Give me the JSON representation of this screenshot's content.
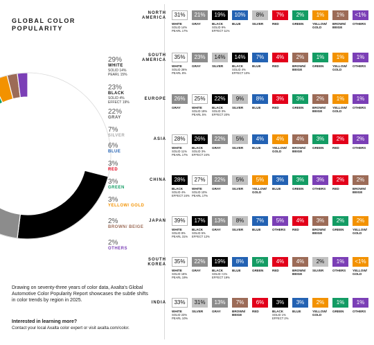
{
  "title_line1": "GLOBAL COLOR",
  "title_line2": "POPULARITY",
  "description": "Drawing on seventy-three years of color data, Axalta's Global Automotive Color Popularity Report showcases the subtle shifts in color trends by region in 2025.",
  "cta_heading": "Interested in learning more?",
  "cta_body": "Contact your local Axalta color expert or visit axalta.com/color.",
  "colors": {
    "white": "#ffffff",
    "gray": "#8c8c8c",
    "black": "#000000",
    "blue": "#2362b3",
    "silver": "#c2c2c2",
    "red": "#e2001a",
    "green": "#139c64",
    "yellow": "#f39200",
    "brown": "#9c6b57",
    "others": "#7b3fb6"
  },
  "legend": [
    {
      "pct": "29%",
      "name": "WHITE",
      "sub": [
        "SOLID 14%",
        "PEARL 15%"
      ],
      "key": "black_text"
    },
    {
      "pct": "23%",
      "name": "BLACK",
      "sub": [
        "SOLID 4%",
        "EFFECT 19%"
      ],
      "key": "black_text"
    },
    {
      "pct": "22%",
      "name": "GRAY",
      "sub": [],
      "key": "gray_text"
    },
    {
      "pct": "7%",
      "name": "SILVER",
      "sub": [],
      "key": "silver_text"
    },
    {
      "pct": "6%",
      "name": "BLUE",
      "sub": [],
      "key": "blue"
    },
    {
      "pct": "3%",
      "name": "RED",
      "sub": [],
      "key": "red"
    },
    {
      "pct": "3%",
      "name": "GREEN",
      "sub": [],
      "key": "green"
    },
    {
      "pct": "3%",
      "name": "YELLOW/ GOLD",
      "sub": [],
      "key": "yellow"
    },
    {
      "pct": "2%",
      "name": "BROWN/ BEIGE",
      "sub": [],
      "key": "brown"
    },
    {
      "pct": "2%",
      "name": "OTHERS",
      "sub": [],
      "key": "others"
    }
  ],
  "chart_data": [
    {
      "type": "pie",
      "title": "GLOBAL COLOR POPULARITY",
      "categories": [
        "WHITE",
        "BLACK",
        "GRAY",
        "SILVER",
        "BLUE",
        "RED",
        "GREEN",
        "YELLOW/GOLD",
        "BROWN/BEIGE",
        "OTHERS"
      ],
      "values": [
        29,
        23,
        22,
        7,
        6,
        3,
        3,
        3,
        2,
        2
      ]
    },
    {
      "type": "table",
      "title": "Color popularity by region",
      "regions": [
        {
          "name": "NORTH AMERICA",
          "items": [
            {
              "v": "31%",
              "c": "white",
              "label": "WHITE",
              "sub": [
                "SOLID 14%",
                "PEARL 17%"
              ]
            },
            {
              "v": "21%",
              "c": "gray",
              "label": "GRAY",
              "sub": []
            },
            {
              "v": "19%",
              "c": "black",
              "label": "BLACK",
              "sub": [
                "SOLID 9%",
                "EFFECT 11%"
              ]
            },
            {
              "v": "10%",
              "c": "blue",
              "label": "BLUE",
              "sub": []
            },
            {
              "v": "8%",
              "c": "silver",
              "label": "SILVER",
              "sub": []
            },
            {
              "v": "7%",
              "c": "red",
              "label": "RED",
              "sub": []
            },
            {
              "v": "2%",
              "c": "green",
              "label": "GREEN",
              "sub": []
            },
            {
              "v": "1%",
              "c": "yellow",
              "label": "YELLOW/ GOLD",
              "sub": []
            },
            {
              "v": "1%",
              "c": "brown",
              "label": "BROWN/ BEIGE",
              "sub": []
            },
            {
              "v": "<1%",
              "c": "others",
              "label": "OTHERS",
              "sub": []
            }
          ]
        },
        {
          "name": "SOUTH AMERICA",
          "items": [
            {
              "v": "35%",
              "c": "white",
              "label": "WHITE",
              "sub": [
                "SOLID 26%",
                "PEARL 8%"
              ]
            },
            {
              "v": "23%",
              "c": "gray",
              "label": "GRAY",
              "sub": []
            },
            {
              "v": "14%",
              "c": "silver",
              "label": "SILVER",
              "sub": []
            },
            {
              "v": "14%",
              "c": "black",
              "label": "BLACK",
              "sub": [
                "SOLID 4%",
                "EFFECT 10%"
              ]
            },
            {
              "v": "7%",
              "c": "blue",
              "label": "BLUE",
              "sub": []
            },
            {
              "v": "4%",
              "c": "red",
              "label": "RED",
              "sub": []
            },
            {
              "v": "2%",
              "c": "brown",
              "label": "BROWN/ BEIGE",
              "sub": []
            },
            {
              "v": "1%",
              "c": "green",
              "label": "GREEN",
              "sub": []
            },
            {
              "v": "1%",
              "c": "yellow",
              "label": "YELLOW/ GOLD",
              "sub": []
            },
            {
              "v": "1%",
              "c": "others",
              "label": "OTHERS",
              "sub": []
            }
          ]
        },
        {
          "name": "EUROPE",
          "items": [
            {
              "v": "26%",
              "c": "gray",
              "label": "GRAY",
              "sub": []
            },
            {
              "v": "25%",
              "c": "white",
              "label": "WHITE",
              "sub": [
                "SOLID 19%",
                "PEARL 5%"
              ]
            },
            {
              "v": "22%",
              "c": "black",
              "label": "BLACK",
              "sub": [
                "SOLID 3%",
                "EFFECT 20%"
              ]
            },
            {
              "v": "9%",
              "c": "silver",
              "label": "SILVER",
              "sub": []
            },
            {
              "v": "8%",
              "c": "blue",
              "label": "BLUE",
              "sub": []
            },
            {
              "v": "3%",
              "c": "red",
              "label": "RED",
              "sub": []
            },
            {
              "v": "3%",
              "c": "green",
              "label": "GREEN",
              "sub": []
            },
            {
              "v": "2%",
              "c": "brown",
              "label": "BROWN/ BEIGE",
              "sub": []
            },
            {
              "v": "1%",
              "c": "yellow",
              "label": "YELLOW/ GOLD",
              "sub": []
            },
            {
              "v": "1%",
              "c": "others",
              "label": "OTHERS",
              "sub": []
            }
          ]
        },
        {
          "name": "ASIA",
          "items": [
            {
              "v": "28%",
              "c": "white",
              "label": "WHITE",
              "sub": [
                "SOLID 11%",
                "PEARL 17%"
              ]
            },
            {
              "v": "26%",
              "c": "black",
              "label": "BLACK",
              "sub": [
                "SOLID 3%",
                "EFFECT 24%"
              ]
            },
            {
              "v": "22%",
              "c": "gray",
              "label": "GRAY",
              "sub": []
            },
            {
              "v": "5%",
              "c": "silver",
              "label": "SILVER",
              "sub": []
            },
            {
              "v": "4%",
              "c": "blue",
              "label": "BLUE",
              "sub": []
            },
            {
              "v": "4%",
              "c": "yellow",
              "label": "YELLOW/ GOLD",
              "sub": []
            },
            {
              "v": "4%",
              "c": "brown",
              "label": "BROWN/ BEIGE",
              "sub": []
            },
            {
              "v": "3%",
              "c": "green",
              "label": "GREEN",
              "sub": []
            },
            {
              "v": "2%",
              "c": "red",
              "label": "RED",
              "sub": []
            },
            {
              "v": "2%",
              "c": "others",
              "label": "OTHERS",
              "sub": []
            }
          ]
        },
        {
          "name": "CHINA",
          "items": [
            {
              "v": "28%",
              "c": "black",
              "label": "BLACK",
              "sub": [
                "SOLID 4%",
                "EFFECT 24%"
              ]
            },
            {
              "v": "27%",
              "c": "white",
              "label": "WHITE",
              "sub": [
                "SOLID 10%",
                "PEARL 17%"
              ]
            },
            {
              "v": "22%",
              "c": "gray",
              "label": "GRAY",
              "sub": []
            },
            {
              "v": "5%",
              "c": "silver",
              "label": "SILVER",
              "sub": []
            },
            {
              "v": "5%",
              "c": "yellow",
              "label": "YELLOW/ GOLD",
              "sub": []
            },
            {
              "v": "3%",
              "c": "blue",
              "label": "BLUE",
              "sub": []
            },
            {
              "v": "3%",
              "c": "green",
              "label": "GREEN",
              "sub": []
            },
            {
              "v": "3%",
              "c": "others",
              "label": "OTHERS",
              "sub": []
            },
            {
              "v": "2%",
              "c": "red",
              "label": "RED",
              "sub": []
            },
            {
              "v": "2%",
              "c": "brown",
              "label": "BROWN/ BEIGE",
              "sub": []
            }
          ]
        },
        {
          "name": "JAPAN",
          "items": [
            {
              "v": "39%",
              "c": "white",
              "label": "WHITE",
              "sub": [
                "SOLID 8%",
                "PEARL 31%"
              ]
            },
            {
              "v": "17%",
              "c": "black",
              "label": "BLACK",
              "sub": [
                "SOLID 5%",
                "EFFECT 12%"
              ]
            },
            {
              "v": "13%",
              "c": "gray",
              "label": "GRAY",
              "sub": []
            },
            {
              "v": "8%",
              "c": "silver",
              "label": "SILVER",
              "sub": []
            },
            {
              "v": "7%",
              "c": "blue",
              "label": "BLUE",
              "sub": []
            },
            {
              "v": "5%",
              "c": "others",
              "label": "OTHERS",
              "sub": []
            },
            {
              "v": "4%",
              "c": "red",
              "label": "RED",
              "sub": []
            },
            {
              "v": "3%",
              "c": "brown",
              "label": "BROWN/ BEIGE",
              "sub": []
            },
            {
              "v": "2%",
              "c": "green",
              "label": "GREEN",
              "sub": []
            },
            {
              "v": "2%",
              "c": "yellow",
              "label": "YELLOW/ GOLD",
              "sub": []
            }
          ]
        },
        {
          "name": "SOUTH KOREA",
          "items": [
            {
              "v": "35%",
              "c": "white",
              "label": "WHITE",
              "sub": [
                "SOLID 16%",
                "PEARL 19%"
              ]
            },
            {
              "v": "22%",
              "c": "gray",
              "label": "GRAY",
              "sub": []
            },
            {
              "v": "19%",
              "c": "black",
              "label": "BLACK",
              "sub": [
                "SOLID <1%",
                "EFFECT 19%"
              ]
            },
            {
              "v": "8%",
              "c": "blue",
              "label": "BLUE",
              "sub": []
            },
            {
              "v": "5%",
              "c": "green",
              "label": "GREEN",
              "sub": []
            },
            {
              "v": "4%",
              "c": "red",
              "label": "RED",
              "sub": []
            },
            {
              "v": "4%",
              "c": "brown",
              "label": "BROWN/ BEIGE",
              "sub": []
            },
            {
              "v": "2%",
              "c": "silver",
              "label": "SILVER",
              "sub": []
            },
            {
              "v": "1%",
              "c": "others",
              "label": "OTHERS",
              "sub": []
            },
            {
              "v": "<1%",
              "c": "yellow",
              "label": "YELLOW/ GOLD",
              "sub": []
            }
          ]
        },
        {
          "name": "INDIA",
          "items": [
            {
              "v": "33%",
              "c": "white",
              "label": "WHITE",
              "sub": [
                "SOLID 23%",
                "PEARL 10%"
              ]
            },
            {
              "v": "31%",
              "c": "silver",
              "label": "SILVER",
              "sub": []
            },
            {
              "v": "13%",
              "c": "gray",
              "label": "GRAY",
              "sub": []
            },
            {
              "v": "7%",
              "c": "brown",
              "label": "BROWN/ BEIGE",
              "sub": []
            },
            {
              "v": "6%",
              "c": "red",
              "label": "RED",
              "sub": []
            },
            {
              "v": "3%",
              "c": "black",
              "label": "BLACK",
              "sub": [
                "SOLID 1%",
                "EFFECT 2%"
              ]
            },
            {
              "v": "3%",
              "c": "blue",
              "label": "BLUE",
              "sub": []
            },
            {
              "v": "2%",
              "c": "yellow",
              "label": "YELLOW/ GOLD",
              "sub": []
            },
            {
              "v": "1%",
              "c": "green",
              "label": "GREEN",
              "sub": []
            },
            {
              "v": "1%",
              "c": "others",
              "label": "OTHERS",
              "sub": []
            }
          ]
        }
      ]
    }
  ]
}
